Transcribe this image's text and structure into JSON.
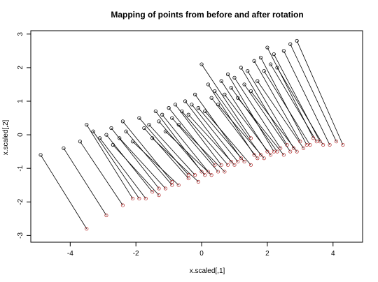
{
  "chart_data": {
    "type": "scatter",
    "title": "Mapping of points from before and after rotation",
    "xlabel": "x.scaled[,1]",
    "ylabel": "x.scaled[,2]",
    "xlim": [
      -5.2,
      4.9
    ],
    "ylim": [
      -3.2,
      3.1
    ],
    "x_ticks": [
      -4,
      -2,
      0,
      2,
      4
    ],
    "y_ticks": [
      -3,
      -2,
      -1,
      0,
      1,
      2,
      3
    ],
    "x_tick_labels": [
      "-4",
      "-2",
      "0",
      "2",
      "4"
    ],
    "y_tick_labels": [
      "-3",
      "-2",
      "-1",
      "0",
      "1",
      "2",
      "3"
    ],
    "grid": false,
    "legend": "none",
    "colors": {
      "original": "#000000",
      "rotated": "#b22222",
      "segment": "#000000"
    },
    "series": [
      {
        "role": "original points (black circles)",
        "x": [
          -4.9,
          -4.2,
          -3.7,
          -3.5,
          -3.3,
          -3.1,
          -2.9,
          -2.75,
          -2.7,
          -2.5,
          -2.4,
          -2.3,
          -2.1,
          -1.9,
          -1.75,
          -1.6,
          -1.5,
          -1.4,
          -1.3,
          -1.2,
          -1.1,
          -1.0,
          -0.9,
          -0.8,
          -0.7,
          -0.6,
          -0.5,
          -0.4,
          -0.3,
          -0.2,
          -0.1,
          0.0,
          0.1,
          0.2,
          0.3,
          0.4,
          0.5,
          0.6,
          0.7,
          0.8,
          0.9,
          1.0,
          1.1,
          1.2,
          1.3,
          1.4,
          1.5,
          1.6,
          1.7,
          1.8,
          1.9,
          2.0,
          2.1,
          2.2,
          2.3,
          2.5,
          2.7,
          2.9
        ],
        "y": [
          -0.6,
          -0.4,
          -0.2,
          0.3,
          0.1,
          -0.1,
          0.0,
          0.2,
          -0.3,
          -0.1,
          0.4,
          0.1,
          -0.2,
          0.5,
          0.2,
          0.3,
          -0.1,
          0.7,
          0.4,
          0.6,
          0.1,
          0.8,
          0.5,
          0.9,
          0.3,
          0.7,
          1.0,
          0.6,
          0.9,
          1.2,
          0.8,
          2.1,
          0.7,
          1.5,
          1.1,
          1.3,
          0.9,
          1.6,
          1.2,
          1.8,
          1.4,
          1.7,
          1.1,
          2.0,
          1.5,
          1.9,
          1.3,
          2.2,
          1.6,
          2.3,
          1.9,
          2.6,
          2.1,
          2.4,
          2.0,
          2.5,
          2.7,
          2.8
        ]
      },
      {
        "role": "rotated points (red circles)",
        "x": [
          -3.5,
          -2.9,
          -2.4,
          -2.1,
          -1.9,
          -1.7,
          -1.5,
          -1.3,
          -1.3,
          -1.1,
          -0.9,
          -0.9,
          -0.7,
          -0.4,
          -0.4,
          -0.2,
          -0.1,
          0.0,
          0.1,
          0.2,
          0.3,
          0.4,
          0.5,
          0.6,
          0.7,
          0.8,
          0.9,
          1.0,
          1.1,
          1.2,
          1.3,
          1.5,
          1.5,
          1.6,
          1.7,
          1.8,
          1.9,
          2.0,
          2.1,
          2.2,
          2.3,
          2.4,
          2.5,
          2.6,
          2.7,
          2.8,
          2.9,
          3.0,
          3.1,
          3.2,
          3.3,
          3.4,
          3.5,
          3.6,
          3.7,
          3.9,
          4.1,
          4.3
        ],
        "y": [
          -2.8,
          -2.4,
          -2.1,
          -1.9,
          -1.9,
          -1.9,
          -1.7,
          -1.6,
          -1.8,
          -1.6,
          -1.4,
          -1.5,
          -1.5,
          -1.2,
          -1.3,
          -1.2,
          -1.4,
          -1.1,
          -1.2,
          -1.1,
          -1.2,
          -0.9,
          -1.1,
          -0.9,
          -1.1,
          -0.9,
          -0.8,
          -0.9,
          -0.8,
          -0.7,
          -0.8,
          -0.1,
          -0.9,
          -0.6,
          -0.7,
          -0.6,
          -0.7,
          -0.5,
          -0.6,
          -0.5,
          -0.5,
          -0.4,
          -0.6,
          -0.3,
          -0.5,
          -0.4,
          -0.5,
          -0.2,
          -0.4,
          -0.3,
          -0.3,
          -0.1,
          -0.2,
          -0.2,
          -0.3,
          -0.3,
          -0.2,
          -0.3
        ]
      }
    ],
    "note_on_segments": "each original point is joined by a line segment to its rotated counterpart (pairs share the same index)"
  }
}
